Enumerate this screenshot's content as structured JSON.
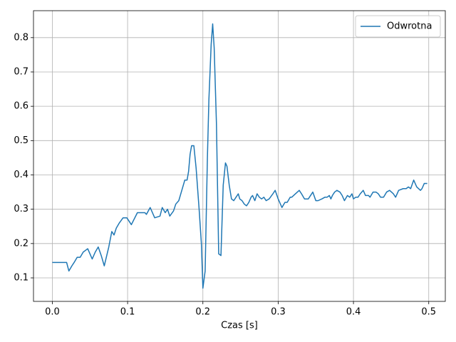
{
  "chart_data": {
    "type": "line",
    "xlabel": "Czas [s]",
    "x": [
      0,
      0.019,
      0.022,
      0.026,
      0.029,
      0.033,
      0.037,
      0.041,
      0.047,
      0.053,
      0.057,
      0.061,
      0.065,
      0.069,
      0.075,
      0.079,
      0.082,
      0.085,
      0.089,
      0.094,
      0.099,
      0.105,
      0.113,
      0.123,
      0.125,
      0.13,
      0.136,
      0.143,
      0.146,
      0.15,
      0.153,
      0.156,
      0.161,
      0.164,
      0.168,
      0.172,
      0.176,
      0.179,
      0.181,
      0.183,
      0.185,
      0.188,
      0.191,
      0.195,
      0.198,
      0.2,
      0.203,
      0.206,
      0.208,
      0.211,
      0.213,
      0.215,
      0.218,
      0.221,
      0.224,
      0.227,
      0.23,
      0.232,
      0.235,
      0.238,
      0.241,
      0.244,
      0.247,
      0.249,
      0.252,
      0.255,
      0.258,
      0.261,
      0.264,
      0.266,
      0.269,
      0.272,
      0.275,
      0.278,
      0.281,
      0.284,
      0.288,
      0.293,
      0.296,
      0.3,
      0.305,
      0.309,
      0.312,
      0.316,
      0.318,
      0.323,
      0.328,
      0.331,
      0.335,
      0.34,
      0.346,
      0.35,
      0.353,
      0.358,
      0.362,
      0.365,
      0.368,
      0.37,
      0.372,
      0.375,
      0.378,
      0.382,
      0.385,
      0.388,
      0.392,
      0.395,
      0.398,
      0.4,
      0.403,
      0.406,
      0.409,
      0.413,
      0.416,
      0.42,
      0.422,
      0.426,
      0.43,
      0.433,
      0.436,
      0.44,
      0.444,
      0.448,
      0.453,
      0.456,
      0.46,
      0.466,
      0.47,
      0.473,
      0.476,
      0.48,
      0.484,
      0.489,
      0.491,
      0.494,
      0.498
    ],
    "series": [
      {
        "name": "Odwrotna",
        "color": "#1f77b4",
        "values": [
          0.145,
          0.145,
          0.12,
          0.135,
          0.145,
          0.16,
          0.16,
          0.175,
          0.185,
          0.155,
          0.175,
          0.19,
          0.165,
          0.135,
          0.19,
          0.235,
          0.225,
          0.245,
          0.26,
          0.275,
          0.275,
          0.255,
          0.29,
          0.29,
          0.285,
          0.305,
          0.275,
          0.28,
          0.305,
          0.29,
          0.3,
          0.28,
          0.295,
          0.315,
          0.325,
          0.355,
          0.385,
          0.385,
          0.41,
          0.46,
          0.485,
          0.485,
          0.42,
          0.3,
          0.2,
          0.07,
          0.12,
          0.45,
          0.62,
          0.78,
          0.84,
          0.77,
          0.55,
          0.17,
          0.165,
          0.37,
          0.435,
          0.425,
          0.37,
          0.33,
          0.325,
          0.335,
          0.345,
          0.33,
          0.325,
          0.315,
          0.31,
          0.32,
          0.335,
          0.34,
          0.325,
          0.345,
          0.335,
          0.33,
          0.335,
          0.325,
          0.33,
          0.345,
          0.355,
          0.33,
          0.305,
          0.32,
          0.32,
          0.335,
          0.335,
          0.345,
          0.355,
          0.345,
          0.33,
          0.33,
          0.35,
          0.325,
          0.325,
          0.33,
          0.335,
          0.335,
          0.34,
          0.33,
          0.34,
          0.35,
          0.355,
          0.35,
          0.34,
          0.325,
          0.34,
          0.335,
          0.345,
          0.33,
          0.335,
          0.335,
          0.345,
          0.355,
          0.34,
          0.34,
          0.335,
          0.35,
          0.35,
          0.345,
          0.335,
          0.335,
          0.35,
          0.355,
          0.345,
          0.335,
          0.355,
          0.36,
          0.36,
          0.365,
          0.36,
          0.385,
          0.365,
          0.355,
          0.36,
          0.375,
          0.375
        ]
      }
    ],
    "xlim": [
      -0.025,
      0.522
    ],
    "ylim": [
      0.0315,
      0.8785
    ],
    "xticks": [
      {
        "value": 0,
        "label": "0.0"
      },
      0.1,
      0.2,
      0.3,
      0.4,
      0.5
    ],
    "yticks": [
      0.1,
      0.2,
      0.3,
      0.4,
      0.5,
      0.6,
      0.7,
      0.8
    ],
    "grid": true,
    "legend": "upper right"
  }
}
